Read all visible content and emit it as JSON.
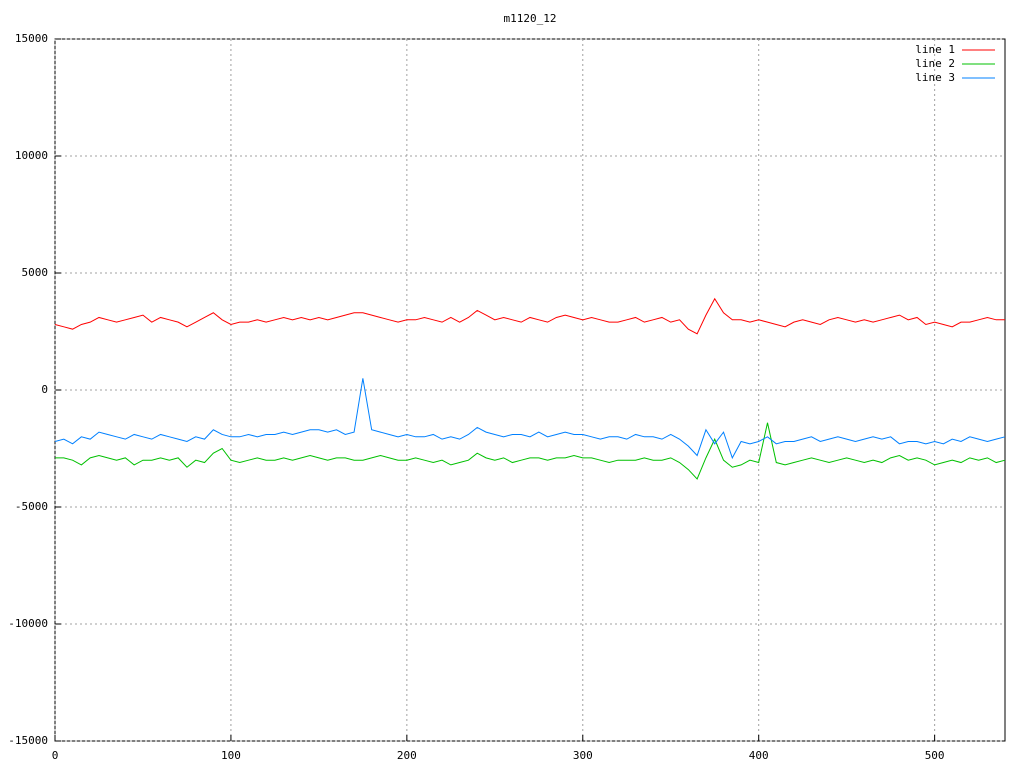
{
  "chart_data": {
    "type": "line",
    "title": "m1120_12",
    "x": [
      0,
      5,
      10,
      15,
      20,
      25,
      30,
      35,
      40,
      45,
      50,
      55,
      60,
      65,
      70,
      75,
      80,
      85,
      90,
      95,
      100,
      105,
      110,
      115,
      120,
      125,
      130,
      135,
      140,
      145,
      150,
      155,
      160,
      165,
      170,
      175,
      180,
      185,
      190,
      195,
      200,
      205,
      210,
      215,
      220,
      225,
      230,
      235,
      240,
      245,
      250,
      255,
      260,
      265,
      270,
      275,
      280,
      285,
      290,
      295,
      300,
      305,
      310,
      315,
      320,
      325,
      330,
      335,
      340,
      345,
      350,
      355,
      360,
      365,
      370,
      375,
      380,
      385,
      390,
      395,
      400,
      405,
      410,
      415,
      420,
      425,
      430,
      435,
      440,
      445,
      450,
      455,
      460,
      465,
      470,
      475,
      480,
      485,
      490,
      495,
      500,
      505,
      510,
      515,
      520,
      525,
      530,
      535,
      540
    ],
    "series": [
      {
        "name": "line 1",
        "color": "#ff0000",
        "values": [
          2800,
          2700,
          2600,
          2800,
          2900,
          3100,
          3000,
          2900,
          3000,
          3100,
          3200,
          2900,
          3100,
          3000,
          2900,
          2700,
          2900,
          3100,
          3300,
          3000,
          2800,
          2900,
          2900,
          3000,
          2900,
          3000,
          3100,
          3000,
          3100,
          3000,
          3100,
          3000,
          3100,
          3200,
          3300,
          3300,
          3200,
          3100,
          3000,
          2900,
          3000,
          3000,
          3100,
          3000,
          2900,
          3100,
          2900,
          3100,
          3400,
          3200,
          3000,
          3100,
          3000,
          2900,
          3100,
          3000,
          2900,
          3100,
          3200,
          3100,
          3000,
          3100,
          3000,
          2900,
          2900,
          3000,
          3100,
          2900,
          3000,
          3100,
          2900,
          3000,
          2600,
          2400,
          3200,
          3900,
          3300,
          3000,
          3000,
          2900,
          3000,
          2900,
          2800,
          2700,
          2900,
          3000,
          2900,
          2800,
          3000,
          3100,
          3000,
          2900,
          3000,
          2900,
          3000,
          3100,
          3200,
          3000,
          3100,
          2800,
          2900,
          2800,
          2700,
          2900,
          2900,
          3000,
          3100,
          3000,
          3000
        ]
      },
      {
        "name": "line 2",
        "color": "#00c000",
        "values": [
          -2900,
          -2900,
          -3000,
          -3200,
          -2900,
          -2800,
          -2900,
          -3000,
          -2900,
          -3200,
          -3000,
          -3000,
          -2900,
          -3000,
          -2900,
          -3300,
          -3000,
          -3100,
          -2700,
          -2500,
          -3000,
          -3100,
          -3000,
          -2900,
          -3000,
          -3000,
          -2900,
          -3000,
          -2900,
          -2800,
          -2900,
          -3000,
          -2900,
          -2900,
          -3000,
          -3000,
          -2900,
          -2800,
          -2900,
          -3000,
          -3000,
          -2900,
          -3000,
          -3100,
          -3000,
          -3200,
          -3100,
          -3000,
          -2700,
          -2900,
          -3000,
          -2900,
          -3100,
          -3000,
          -2900,
          -2900,
          -3000,
          -2900,
          -2900,
          -2800,
          -2900,
          -2900,
          -3000,
          -3100,
          -3000,
          -3000,
          -3000,
          -2900,
          -3000,
          -3000,
          -2900,
          -3100,
          -3400,
          -3800,
          -2900,
          -2100,
          -3000,
          -3300,
          -3200,
          -3000,
          -3100,
          -1400,
          -3100,
          -3200,
          -3100,
          -3000,
          -2900,
          -3000,
          -3100,
          -3000,
          -2900,
          -3000,
          -3100,
          -3000,
          -3100,
          -2900,
          -2800,
          -3000,
          -2900,
          -3000,
          -3200,
          -3100,
          -3000,
          -3100,
          -2900,
          -3000,
          -2900,
          -3100,
          -3000
        ]
      },
      {
        "name": "line 3",
        "color": "#0080ff",
        "values": [
          -2200,
          -2100,
          -2300,
          -2000,
          -2100,
          -1800,
          -1900,
          -2000,
          -2100,
          -1900,
          -2000,
          -2100,
          -1900,
          -2000,
          -2100,
          -2200,
          -2000,
          -2100,
          -1700,
          -1900,
          -2000,
          -2000,
          -1900,
          -2000,
          -1900,
          -1900,
          -1800,
          -1900,
          -1800,
          -1700,
          -1700,
          -1800,
          -1700,
          -1900,
          -1800,
          500,
          -1700,
          -1800,
          -1900,
          -2000,
          -1900,
          -2000,
          -2000,
          -1900,
          -2100,
          -2000,
          -2100,
          -1900,
          -1600,
          -1800,
          -1900,
          -2000,
          -1900,
          -1900,
          -2000,
          -1800,
          -2000,
          -1900,
          -1800,
          -1900,
          -1900,
          -2000,
          -2100,
          -2000,
          -2000,
          -2100,
          -1900,
          -2000,
          -2000,
          -2100,
          -1900,
          -2100,
          -2400,
          -2800,
          -1700,
          -2300,
          -1800,
          -2900,
          -2200,
          -2300,
          -2200,
          -2000,
          -2300,
          -2200,
          -2200,
          -2100,
          -2000,
          -2200,
          -2100,
          -2000,
          -2100,
          -2200,
          -2100,
          -2000,
          -2100,
          -2000,
          -2300,
          -2200,
          -2200,
          -2300,
          -2200,
          -2300,
          -2100,
          -2200,
          -2000,
          -2100,
          -2200,
          -2100,
          -2000
        ]
      }
    ],
    "xlim": [
      0,
      540
    ],
    "xticks": [
      0,
      100,
      200,
      300,
      400,
      500
    ],
    "ylim": [
      -15000,
      15000
    ],
    "yticks": [
      -15000,
      -10000,
      -5000,
      0,
      5000,
      10000,
      15000
    ],
    "grid": true,
    "legend": "top-right"
  }
}
